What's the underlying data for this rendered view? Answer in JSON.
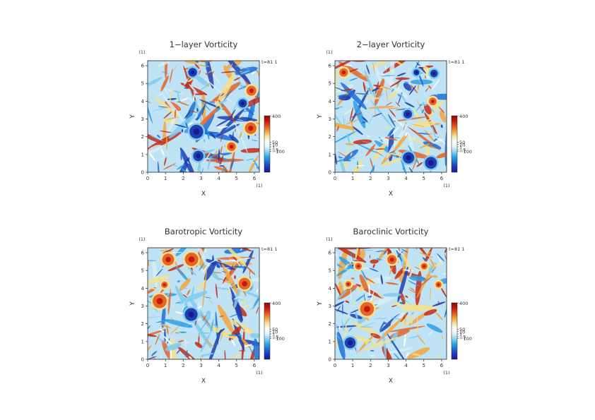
{
  "chart_data": [
    {
      "type": "heatmap",
      "title": "1−layer Vorticity",
      "xlabel": "X",
      "ylabel": "Y",
      "x_unit": "(1)",
      "y_unit": "(1)",
      "x_ticks": [
        0,
        1,
        2,
        3,
        4,
        5,
        6
      ],
      "y_ticks": [
        0,
        1,
        2,
        3,
        4,
        5,
        6
      ],
      "xlim": [
        0,
        6.28
      ],
      "ylim": [
        0,
        6.28
      ],
      "time_label": "t=81 1",
      "colorbar": {
        "labels": [
          "400",
          "50",
          "10",
          "1",
          "−5",
          "−100"
        ],
        "values": [
          400,
          50,
          10,
          1,
          -5,
          -100
        ]
      }
    },
    {
      "type": "heatmap",
      "title": "2−layer Vorticity",
      "xlabel": "X",
      "ylabel": "Y",
      "x_unit": "(1)",
      "y_unit": "(1)",
      "x_ticks": [
        0,
        1,
        2,
        3,
        4,
        5,
        6
      ],
      "y_ticks": [
        0,
        1,
        2,
        3,
        4,
        5,
        6
      ],
      "xlim": [
        0,
        6.28
      ],
      "ylim": [
        0,
        6.28
      ],
      "time_label": "t=81 1",
      "colorbar": {
        "labels": [
          "400",
          "50",
          "10",
          "1",
          "−5",
          "−100"
        ],
        "values": [
          400,
          50,
          10,
          1,
          -5,
          -100
        ]
      }
    },
    {
      "type": "heatmap",
      "title": "Barotropic Vorticity",
      "xlabel": "X",
      "ylabel": "Y",
      "x_unit": "(1)",
      "y_unit": "(1)",
      "x_ticks": [
        0,
        1,
        2,
        3,
        4,
        5,
        6
      ],
      "y_ticks": [
        0,
        1,
        2,
        3,
        4,
        5,
        6
      ],
      "xlim": [
        0,
        6.28
      ],
      "ylim": [
        0,
        6.28
      ],
      "time_label": "t=81 1",
      "colorbar": {
        "labels": [
          "400",
          "50",
          "10",
          "1",
          "−5",
          "−100"
        ],
        "values": [
          400,
          50,
          10,
          1,
          -5,
          -100
        ]
      }
    },
    {
      "type": "heatmap",
      "title": "Baroclinic Vorticity",
      "xlabel": "X",
      "ylabel": "Y",
      "x_unit": "(1)",
      "y_unit": "(1)",
      "x_ticks": [
        0,
        1,
        2,
        3,
        4,
        5,
        6
      ],
      "y_ticks": [
        0,
        1,
        2,
        3,
        4,
        5,
        6
      ],
      "xlim": [
        0,
        6.28
      ],
      "ylim": [
        0,
        6.28
      ],
      "time_label": "t=81 1",
      "colorbar": {
        "labels": [
          "400",
          "50",
          "10",
          "1",
          "−5",
          "−100"
        ],
        "values": [
          400,
          50,
          10,
          1,
          -5,
          -100
        ]
      }
    }
  ],
  "colors": {
    "colorbar_stops": [
      "#1a1a8c",
      "#2233bb",
      "#1e6fd0",
      "#2aa6e6",
      "#8fd3f0",
      "#e6f6fb",
      "#ffffff",
      "#f3e3a0",
      "#f1a23a",
      "#e4531f",
      "#c21a0e",
      "#8c0a05"
    ],
    "field_palette": [
      "#1d3fb0",
      "#1f6fd6",
      "#2e9fe3",
      "#7fcbef",
      "#d6eef8",
      "#ffffff",
      "#f6e08a",
      "#f3a63b",
      "#e4642a",
      "#c62a14"
    ]
  }
}
